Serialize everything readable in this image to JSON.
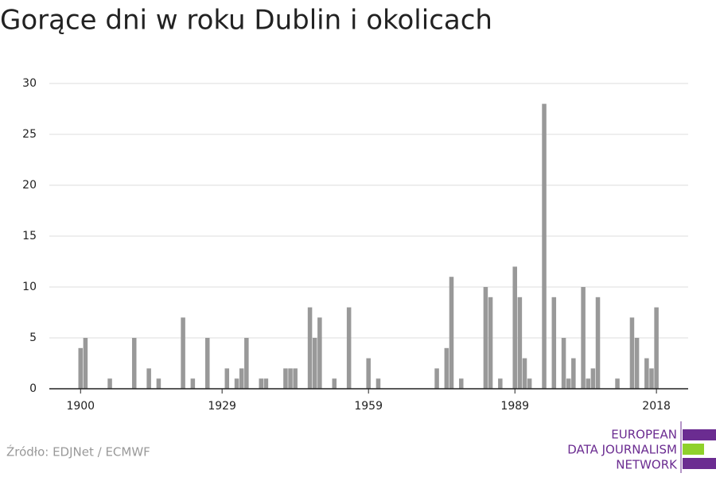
{
  "chart_data": {
    "type": "bar",
    "title": "Gorące dni w roku Dublin i okolicach",
    "x": [
      1900,
      1901,
      1906,
      1911,
      1914,
      1916,
      1921,
      1923,
      1926,
      1930,
      1932,
      1933,
      1934,
      1937,
      1938,
      1942,
      1943,
      1944,
      1947,
      1948,
      1949,
      1952,
      1955,
      1959,
      1961,
      1973,
      1975,
      1976,
      1978,
      1983,
      1984,
      1986,
      1989,
      1990,
      1991,
      1992,
      1995,
      1997,
      1999,
      2000,
      2001,
      2003,
      2004,
      2005,
      2006,
      2010,
      2013,
      2014,
      2016,
      2017,
      2018
    ],
    "values": [
      4,
      5,
      1,
      5,
      2,
      1,
      7,
      1,
      5,
      2,
      1,
      2,
      5,
      1,
      1,
      2,
      2,
      2,
      8,
      5,
      7,
      1,
      8,
      3,
      1,
      2,
      4,
      11,
      1,
      10,
      9,
      1,
      12,
      9,
      3,
      1,
      28,
      9,
      5,
      1,
      3,
      10,
      1,
      2,
      9,
      1,
      7,
      5,
      3,
      2,
      8
    ],
    "color": "#999999",
    "xlim": [
      1893.6,
      2024.5
    ],
    "xticks": [
      1900,
      1929,
      1959,
      1989,
      2018
    ],
    "ylim": [
      0,
      30
    ],
    "yticks": [
      0,
      5,
      10,
      15,
      20,
      25,
      30
    ],
    "grid": true,
    "source": "Źródło: EDJNet / ECMWF",
    "logo": [
      "EUROPEAN",
      "DATA JOURNALISM",
      "NETWORK"
    ]
  }
}
